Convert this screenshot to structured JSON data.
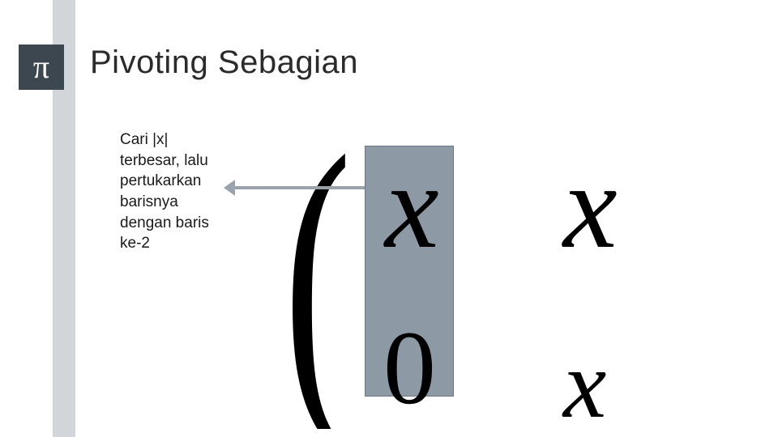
{
  "colors": {
    "page_bg": "#ffffff",
    "left_band": "#7f8a94",
    "left_band_opacity": 0.35,
    "pi_badge_bg": "#3d4750",
    "pi_badge_fg": "#ffffff",
    "title_color": "#2b2b2b",
    "body_color": "#1a1a1a",
    "highlight_fill": "#8d9aa6",
    "highlight_border": "#6b7680",
    "arrow_color": "#9aa3ab",
    "glyph_color": "#000000"
  },
  "fonts": {
    "title_size": 40,
    "body_size": 19,
    "pi_size": 40,
    "math_big": 150,
    "math_mid": 130
  },
  "pi_symbol": "π",
  "title": "Pivoting Sebagian",
  "body_text": "Cari |x| terbesar, lalu pertukarkan barisnya dengan baris ke-2",
  "diagram": {
    "type": "math-matrix-fragment",
    "has_left_paren": true,
    "highlight_column_index": 0,
    "cells": {
      "col0_row0": "x",
      "col0_row1": "0",
      "col1_row0": "x",
      "col1_row1": "x"
    },
    "arrow": {
      "from": "body_text",
      "to": "highlight_column",
      "color": "#9aa3ab"
    }
  }
}
